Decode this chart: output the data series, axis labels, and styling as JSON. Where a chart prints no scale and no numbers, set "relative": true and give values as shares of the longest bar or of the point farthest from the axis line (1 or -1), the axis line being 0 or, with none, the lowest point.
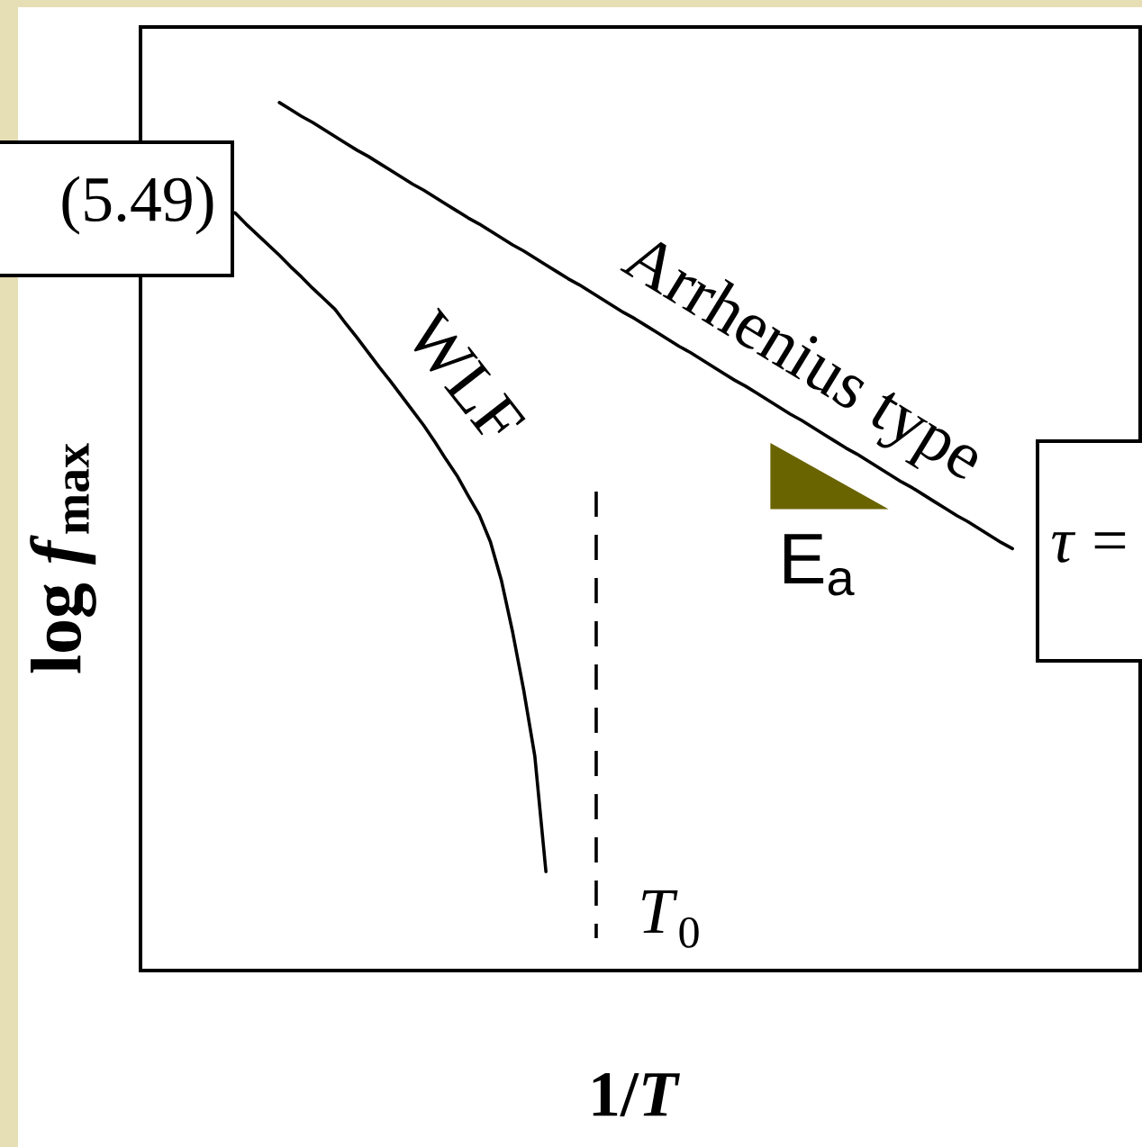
{
  "chart_data": {
    "type": "line",
    "relative": true,
    "xlabel": "1/*T*",
    "ylabel": "log *f*$_{max}$",
    "categories": [
      null,
      null,
      null,
      null,
      null,
      null,
      null,
      null,
      null,
      null,
      null,
      null,
      null,
      null,
      null,
      null,
      null,
      null,
      null,
      null,
      null,
      null,
      null,
      null,
      null,
      null,
      null,
      null,
      null,
      null,
      null,
      null,
      null,
      null,
      null,
      null,
      null,
      null,
      null,
      null,
      null,
      null,
      null,
      null,
      null,
      null,
      null,
      null,
      null,
      null,
      null,
      null,
      null,
      null,
      null,
      null,
      null,
      null,
      null,
      null,
      null,
      null,
      null,
      null,
      null,
      null,
      null,
      null,
      null,
      null,
      null,
      null,
      null,
      null,
      null,
      null,
      null,
      null,
      null,
      null,
      null,
      null,
      null,
      null,
      null,
      null,
      null,
      null,
      null,
      null
    ],
    "series": [
      {
        "name": "Arrhenius type",
        "color": "#000000",
        "values": [
          null,
          null,
          null,
          null,
          null,
          null,
          null,
          null,
          null,
          null,
          null,
          null,
          1.0,
          0.992,
          0.984,
          0.977,
          0.969,
          0.961,
          0.953,
          0.945,
          0.938,
          0.93,
          0.922,
          0.914,
          0.906,
          0.899,
          0.891,
          0.883,
          0.875,
          0.867,
          0.86,
          0.852,
          0.844,
          0.836,
          0.829,
          0.821,
          0.813,
          0.805,
          0.797,
          0.79,
          0.782,
          0.774,
          0.766,
          0.758,
          0.751,
          0.743,
          0.735,
          0.727,
          0.719,
          0.712,
          0.704,
          0.696,
          0.688,
          0.68,
          0.673,
          0.665,
          0.657,
          0.649,
          0.641,
          0.634,
          0.626,
          0.618,
          0.61,
          0.602,
          0.595,
          0.587,
          0.579,
          0.571,
          0.563,
          0.556,
          0.548,
          0.54,
          0.532,
          0.524,
          0.517,
          0.509,
          0.501,
          0.493,
          0.486,
          null,
          null,
          null,
          null,
          null,
          null,
          null,
          null,
          null,
          null,
          null
        ]
      },
      {
        "name": "WLF",
        "color": "#000000",
        "values": [
          null,
          null,
          null,
          null,
          null,
          null,
          null,
          null,
          0.873,
          0.86,
          0.848,
          0.836,
          0.824,
          0.811,
          0.799,
          0.786,
          0.774,
          0.762,
          0.745,
          0.729,
          0.712,
          0.695,
          0.679,
          0.662,
          0.645,
          0.628,
          0.609,
          0.589,
          0.57,
          0.547,
          0.525,
          0.494,
          0.449,
          0.39,
          0.323,
          0.247,
          0.114,
          null,
          null,
          null,
          null,
          null,
          null,
          null,
          null,
          null,
          null,
          null,
          null,
          null,
          null,
          null,
          null,
          null,
          null,
          null,
          null,
          null,
          null,
          null,
          null,
          null,
          null,
          null,
          null,
          null,
          null,
          null,
          null,
          null,
          null,
          null,
          null,
          null,
          null,
          null,
          null,
          null,
          null,
          null,
          null,
          null,
          null,
          null,
          null,
          null,
          null,
          null,
          null,
          null
        ]
      }
    ],
    "annotations": [
      "(5.49)",
      "*τ* =",
      "E$_{a}$",
      "*T*$_{0}$"
    ]
  }
}
